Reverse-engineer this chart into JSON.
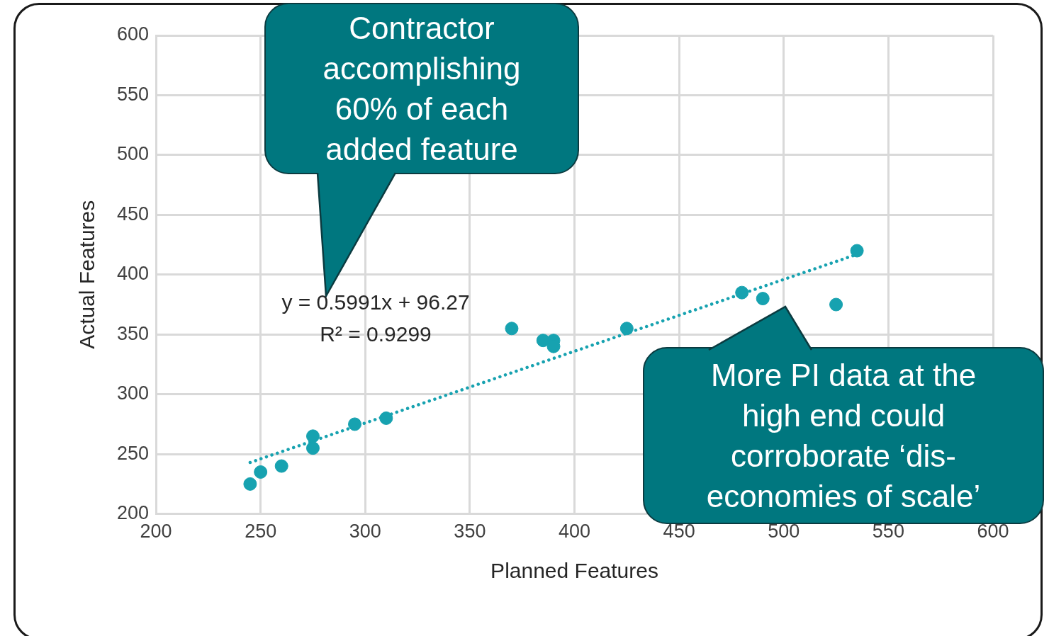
{
  "chart_data": {
    "type": "scatter",
    "xlabel": "Planned Features",
    "ylabel": "Actual Features",
    "xlim": [
      200,
      600
    ],
    "ylim": [
      200,
      600
    ],
    "xticks": [
      200,
      250,
      300,
      350,
      400,
      450,
      500,
      550,
      600
    ],
    "yticks": [
      200,
      250,
      300,
      350,
      400,
      450,
      500,
      550,
      600
    ],
    "grid": true,
    "series": [
      {
        "marker": "circle",
        "color": "#17a2b0",
        "x": [
          245,
          250,
          260,
          275,
          275,
          295,
          310,
          370,
          385,
          390,
          390,
          425,
          480,
          490,
          525,
          535
        ],
        "values": [
          225,
          235,
          240,
          265,
          255,
          275,
          280,
          355,
          345,
          345,
          340,
          355,
          385,
          380,
          375,
          420
        ]
      },
      {
        "type": "line",
        "marker": "none",
        "color": "#17a2b0",
        "line_style": "dotted",
        "x": [
          245,
          535
        ],
        "values": [
          243,
          417
        ]
      }
    ],
    "annotations": [
      "Contractor accomplishing 60% of each added feature",
      "y = 0.5991x + 96.27",
      "R² = 0.9299",
      "More PI data at the high end could corroborate ‘dis-economies of scale’"
    ]
  }
}
